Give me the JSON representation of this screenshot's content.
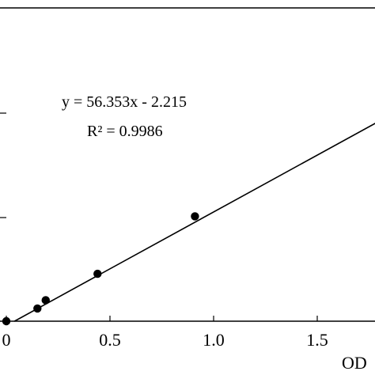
{
  "chart_data": {
    "type": "scatter",
    "title": "",
    "xlabel": "OD",
    "ylabel": "",
    "xlim": [
      0,
      1.75
    ],
    "x_ticks": [
      "0",
      "0.5",
      "1.0",
      "1.5"
    ],
    "x_tick_values": [
      0,
      0.5,
      1.0,
      1.5
    ],
    "series": [
      {
        "points": [
          {
            "x": 0.0,
            "y": 0.0
          },
          {
            "x": 0.15,
            "y": 6.3
          },
          {
            "x": 0.19,
            "y": 10.4
          },
          {
            "x": 0.44,
            "y": 23.5
          },
          {
            "x": 0.91,
            "y": 52.0
          }
        ]
      }
    ],
    "trendline": {
      "slope": 56.353,
      "intercept": -2.215,
      "equation": "y = 56.353x - 2.215",
      "r_squared": "R² = 0.9986"
    },
    "colors": {
      "points": "#000000",
      "line": "#000000",
      "axes": "#000000"
    },
    "grid": false
  }
}
